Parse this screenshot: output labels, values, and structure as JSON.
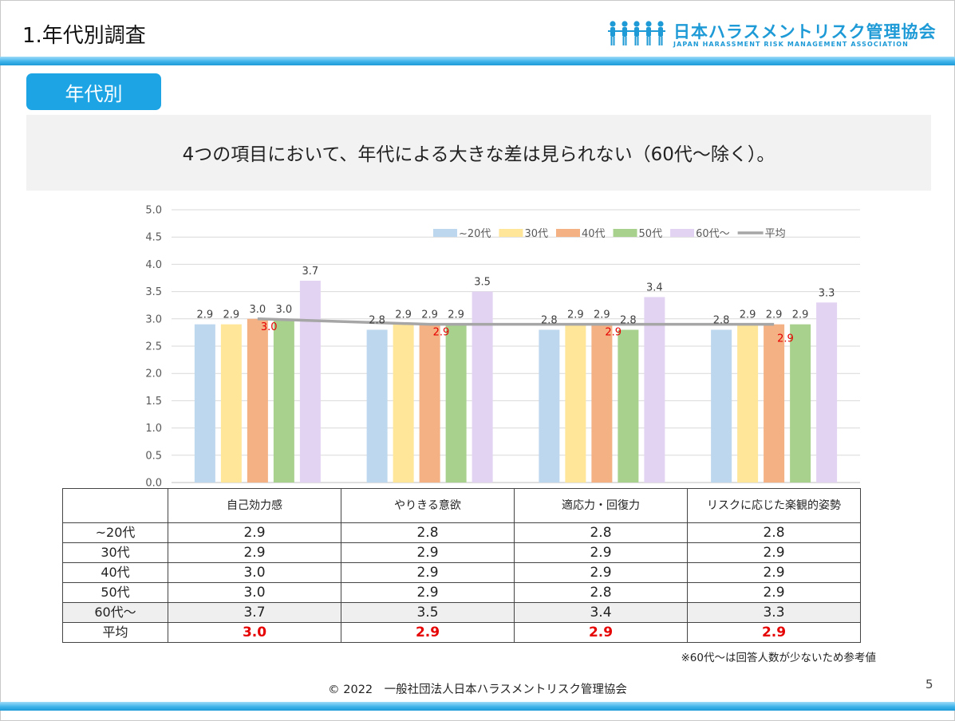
{
  "header": {
    "title": "1.年代別調査",
    "logo_text": "日本ハラスメントリスク管理協会",
    "logo_subtext": "JAPAN HARASSMENT RISK MANAGEMENT ASSOCIATION"
  },
  "section_tag": "年代別",
  "headline": "4つの項目において、年代による大きな差は見られない（60代～除く）。",
  "colors": {
    "accent": "#1da4e4",
    "series": [
      "#bdd7ee",
      "#ffe699",
      "#f4b183",
      "#a9d18e",
      "#e2d3f3"
    ],
    "average_line": "#a6a6a6",
    "average_text": "#e60000"
  },
  "chart_data": {
    "type": "bar",
    "title": "",
    "xlabel": "",
    "ylabel": "",
    "ylim": [
      0,
      5
    ],
    "yticks": [
      "0.0",
      "0.5",
      "1.0",
      "1.5",
      "2.0",
      "2.5",
      "3.0",
      "3.5",
      "4.0",
      "4.5",
      "5.0"
    ],
    "grid": true,
    "legend_position": "top-right",
    "categories": [
      "自己効力感",
      "やりきる意欲",
      "適応力・回復力",
      "リスクに応じた楽観的姿勢"
    ],
    "series": [
      {
        "name": "~20代",
        "values": [
          2.9,
          2.8,
          2.8,
          2.8
        ]
      },
      {
        "name": "30代",
        "values": [
          2.9,
          2.9,
          2.9,
          2.9
        ]
      },
      {
        "name": "40代",
        "values": [
          3.0,
          2.9,
          2.9,
          2.9
        ]
      },
      {
        "name": "50代",
        "values": [
          3.0,
          2.9,
          2.8,
          2.9
        ]
      },
      {
        "name": "60代～",
        "values": [
          3.7,
          3.5,
          3.4,
          3.3
        ]
      }
    ],
    "line": {
      "name": "平均",
      "values": [
        3.0,
        2.9,
        2.9,
        2.9
      ]
    },
    "bar_labels": [
      [
        "2.9",
        "2.8",
        "2.8",
        "2.8"
      ],
      [
        "2.9",
        "2.9",
        "2.9",
        "2.9"
      ],
      [
        "3.0",
        "2.9",
        "2.9",
        "2.9"
      ],
      [
        "3.0",
        "2.9",
        "2.8",
        "2.9"
      ],
      [
        "3.7",
        "3.5",
        "3.4",
        "3.3"
      ]
    ],
    "line_labels": [
      "3.0",
      "2.9",
      "2.9",
      "2.9"
    ]
  },
  "table": {
    "headers": [
      "自己効力感",
      "やりきる意欲",
      "適応力・回復力",
      "リスクに応じた楽観的姿勢"
    ],
    "rows": [
      {
        "label": "~20代",
        "values": [
          "2.9",
          "2.8",
          "2.8",
          "2.8"
        ]
      },
      {
        "label": "30代",
        "values": [
          "2.9",
          "2.9",
          "2.9",
          "2.9"
        ]
      },
      {
        "label": "40代",
        "values": [
          "3.0",
          "2.9",
          "2.9",
          "2.9"
        ]
      },
      {
        "label": "50代",
        "values": [
          "3.0",
          "2.9",
          "2.8",
          "2.9"
        ]
      },
      {
        "label": "60代～",
        "values": [
          "3.7",
          "3.5",
          "3.4",
          "3.3"
        ]
      },
      {
        "label": "平均",
        "values": [
          "3.0",
          "2.9",
          "2.9",
          "2.9"
        ]
      }
    ]
  },
  "note": "※60代～は回答人数が少ないため参考値",
  "footer": "© 2022　一般社団法人日本ハラスメントリスク管理協会",
  "page_number": "5"
}
